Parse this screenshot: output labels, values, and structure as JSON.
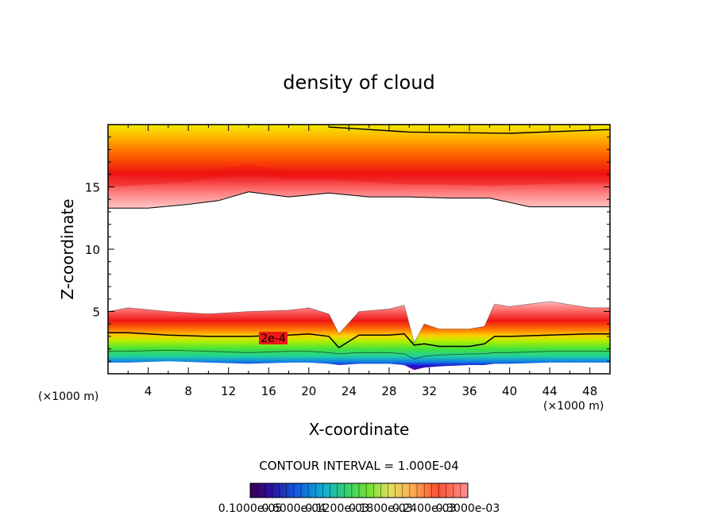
{
  "chart_data": {
    "type": "heatmap",
    "title": "density of cloud",
    "xlabel": "X-coordinate",
    "ylabel": "Z-coordinate",
    "x_units_left": "(×1000 m)",
    "x_units_right": "(×1000 m)",
    "xlim": [
      0,
      50
    ],
    "ylim": [
      0,
      20
    ],
    "x_ticks": [
      4,
      8,
      12,
      16,
      20,
      24,
      28,
      32,
      36,
      40,
      44,
      48
    ],
    "y_ticks": [
      5,
      10,
      15
    ],
    "contour_label": "2e-4",
    "contour_interval_text": "CONTOUR INTERVAL = 1.000E-04",
    "colorbar_labels": [
      "0.1000e-05",
      "0.6000e-04",
      "0.1200e-03",
      "0.1800e-03",
      "0.2400e-03",
      "0.3000e-03"
    ],
    "colormap": [
      "#3a0050",
      "#4a008a",
      "#1a10c8",
      "#1060e0",
      "#10b0e0",
      "#20d090",
      "#40e040",
      "#90f000",
      "#e8f000",
      "#ffd000",
      "#ff9000",
      "#ff5000",
      "#ee1010",
      "#ff8080",
      "#ffc0c0"
    ],
    "upper_layer": {
      "x": [
        0,
        4,
        8,
        11,
        14,
        18,
        22,
        26,
        30,
        34,
        38,
        42,
        46,
        50
      ],
      "base": [
        13.3,
        13.3,
        13.6,
        13.9,
        14.6,
        14.2,
        14.5,
        14.2,
        14.2,
        14.1,
        14.1,
        13.4,
        13.4,
        13.4
      ],
      "peak": [
        15.3,
        15.5,
        15.7,
        16.1,
        16.5,
        15.9,
        15.9,
        15.7,
        15.5,
        15.5,
        15.4,
        15.5,
        15.6,
        15.6
      ],
      "top": [
        19.8,
        19.8,
        19.8,
        19.8,
        19.8,
        19.8,
        19.8,
        19.8,
        19.8,
        19.8,
        19.8,
        19.8,
        19.8,
        19.8
      ]
    },
    "lower_layer": {
      "x": [
        0,
        2,
        6,
        10,
        14,
        18,
        20,
        22,
        23,
        25,
        28,
        29.5,
        30.5,
        31.5,
        33,
        36,
        37.5,
        38.5,
        40,
        44,
        48,
        50
      ],
      "top": [
        5.0,
        5.3,
        5.0,
        4.8,
        5.0,
        5.1,
        5.3,
        4.8,
        3.2,
        5.0,
        5.2,
        5.5,
        2.5,
        4.0,
        3.6,
        3.6,
        3.8,
        5.6,
        5.4,
        5.8,
        5.3,
        5.3
      ],
      "contour_2e4": [
        3.3,
        3.3,
        3.1,
        3.0,
        3.0,
        3.1,
        3.2,
        3.0,
        2.1,
        3.1,
        3.1,
        3.2,
        2.3,
        2.4,
        2.2,
        2.2,
        2.4,
        3.0,
        3.0,
        3.1,
        3.2,
        3.2
      ],
      "bottom": [
        0.9,
        0.9,
        1.0,
        0.9,
        0.8,
        0.9,
        0.9,
        0.8,
        0.7,
        0.8,
        0.8,
        0.7,
        0.3,
        0.5,
        0.6,
        0.7,
        0.7,
        0.8,
        0.8,
        0.9,
        0.9,
        0.9
      ]
    }
  }
}
